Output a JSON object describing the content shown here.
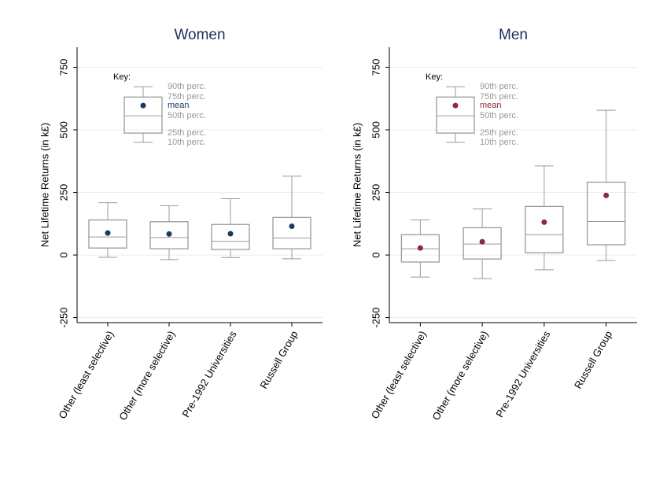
{
  "chart_data": [
    {
      "type": "box",
      "title": "Women",
      "y_label": "Net Lifetime Returns (in k£)",
      "categories": [
        "Other (least selective)",
        "Other (more selective)",
        "Pre-1992 Universities",
        "Russell Group"
      ],
      "p10": [
        -9,
        -18,
        -10,
        -15
      ],
      "p25": [
        28,
        25,
        22,
        25
      ],
      "median": [
        72,
        70,
        55,
        68
      ],
      "p75": [
        140,
        133,
        122,
        150
      ],
      "p90": [
        209,
        197,
        225,
        315
      ],
      "mean": [
        88,
        84,
        85,
        115
      ],
      "color": "#9a9a9a",
      "mean_color": "#1b3a63",
      "ylim": [
        -270,
        830
      ],
      "yticks": [
        -250,
        0,
        250,
        500,
        750
      ],
      "grid": true,
      "key": {
        "title": "Key:",
        "p90": {
          "label": "90th perc.",
          "value": 672
        },
        "p75": {
          "label": "75th perc.",
          "value": 631
        },
        "mean": {
          "label": "mean",
          "value": 597
        },
        "median": {
          "label": "50th perc.",
          "value": 556
        },
        "p25": {
          "label": "25th perc.",
          "value": 487
        },
        "p10": {
          "label": "10th perc.",
          "value": 450
        }
      }
    },
    {
      "type": "box",
      "title": "Men",
      "y_label": "Net Lifetime Returns (in k£)",
      "categories": [
        "Other (least selective)",
        "Other (more selective)",
        "Pre-1992 Universities",
        "Russell Group"
      ],
      "p10": [
        -88,
        -94,
        -59,
        -22
      ],
      "p25": [
        -28,
        -16,
        9,
        41
      ],
      "median": [
        25,
        44,
        81,
        134
      ],
      "p75": [
        81,
        109,
        194,
        291
      ],
      "p90": [
        140,
        184,
        356,
        578
      ],
      "mean": [
        28,
        53,
        131,
        238
      ],
      "color": "#9a9a9a",
      "mean_color": "#8e2a38",
      "ylim": [
        -270,
        830
      ],
      "yticks": [
        -250,
        0,
        250,
        500,
        750
      ],
      "grid": true,
      "key": {
        "title": "Key:",
        "p90": {
          "label": "90th perc.",
          "value": 672
        },
        "p75": {
          "label": "75th perc.",
          "value": 631
        },
        "mean": {
          "label": "mean",
          "value": 597
        },
        "median": {
          "label": "50th perc.",
          "value": 556
        },
        "p25": {
          "label": "25th perc.",
          "value": 487
        },
        "p10": {
          "label": "10th perc.",
          "value": 450
        }
      }
    }
  ]
}
